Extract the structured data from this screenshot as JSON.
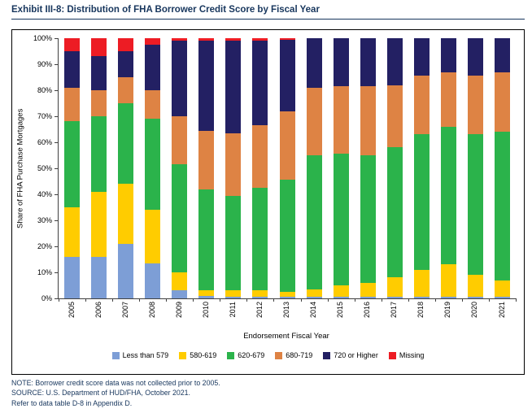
{
  "title": "Exhibit III-8: Distribution of FHA Borrower Credit Score by Fiscal Year",
  "notes": {
    "note": "NOTE: Borrower credit score data was not collected prior to 2005.",
    "source": "SOURCE: U.S. Department of HUD/FHA, October 2021.",
    "refer": "Refer to data table D-8 in Appendix D."
  },
  "colors": {
    "title_navy": "#17365D",
    "axis": "#404040"
  },
  "chart_data": {
    "type": "bar",
    "stacked": true,
    "unit": "%",
    "xlabel": "Endorsement Fiscal Year",
    "ylabel": "Share of FHA Purchase Mortgages",
    "ylim": [
      0,
      100
    ],
    "yticks": [
      0,
      10,
      20,
      30,
      40,
      50,
      60,
      70,
      80,
      90,
      100
    ],
    "grid": false,
    "legend_position": "bottom",
    "categories": [
      "2005",
      "2006",
      "2007",
      "2008",
      "2009",
      "2010",
      "2011",
      "2012",
      "2013",
      "2014",
      "2015",
      "2016",
      "2017",
      "2018",
      "2019",
      "2020",
      "2021"
    ],
    "series": [
      {
        "name": "Less than 579",
        "color": "#7D9ED6",
        "values": [
          16,
          16,
          21,
          13.5,
          3,
          1,
          0.5,
          0.5,
          0.5,
          0.5,
          0.5,
          0.5,
          0.5,
          0.5,
          0.5,
          0.5,
          0.5
        ]
      },
      {
        "name": "580-619",
        "color": "#FFCC00",
        "values": [
          19,
          25,
          23,
          20.5,
          7,
          2,
          2.5,
          2.5,
          2,
          3,
          4.5,
          5.5,
          7.5,
          10.5,
          12.5,
          8.5,
          6.5
        ]
      },
      {
        "name": "620-679",
        "color": "#2BB34B",
        "values": [
          33,
          29,
          31,
          35,
          41.5,
          39,
          36.5,
          39.5,
          43,
          51.5,
          50.5,
          49,
          50,
          52,
          53,
          54,
          57
        ]
      },
      {
        "name": "680-719",
        "color": "#DE8344",
        "values": [
          13,
          10,
          10,
          11,
          18.5,
          22.5,
          24,
          24,
          26.5,
          26,
          26,
          26.5,
          24,
          22.5,
          21,
          22.5,
          23
        ]
      },
      {
        "name": "720 or Higher",
        "color": "#232063",
        "values": [
          14,
          13,
          10,
          17.5,
          29,
          34.5,
          35.5,
          32.5,
          27.5,
          19,
          18.5,
          18.5,
          18,
          14.5,
          13,
          14.5,
          13
        ]
      },
      {
        "name": "Missing",
        "color": "#ED1C24",
        "values": [
          5,
          7,
          5,
          2.5,
          1,
          1,
          1,
          1,
          0.5,
          0,
          0,
          0,
          0,
          0,
          0,
          0,
          0
        ]
      }
    ]
  }
}
